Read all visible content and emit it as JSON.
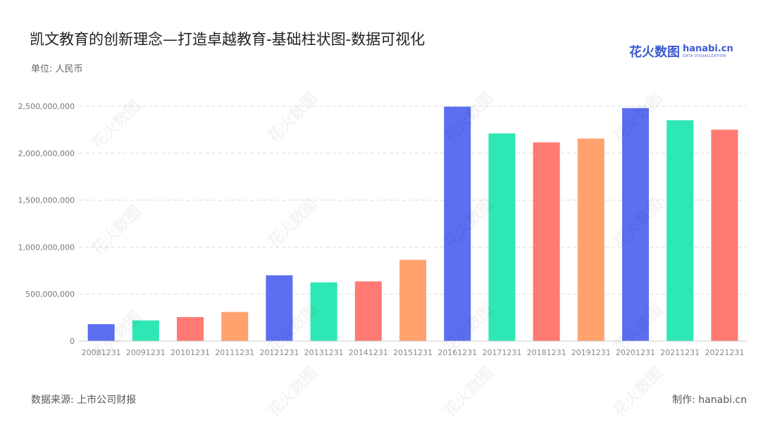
{
  "header": {
    "title": "凯文教育的创新理念—打造卓越教育-基础柱状图-数据可视化",
    "unit": "单位: 人民币"
  },
  "logo": {
    "cn": "花火数图",
    "en": "hanabi.cn",
    "sub": "DATA VISUALIZATION"
  },
  "footer": {
    "source": "数据来源: 上市公司财报",
    "credit": "制作: hanabi.cn"
  },
  "chart_data": {
    "type": "bar",
    "title": "凯文教育的创新理念—打造卓越教育-基础柱状图-数据可视化",
    "ylabel": "单位: 人民币",
    "categories": [
      "20081231",
      "20091231",
      "20101231",
      "20111231",
      "20121231",
      "20131231",
      "20141231",
      "20151231",
      "20161231",
      "20171231",
      "20181231",
      "20191231",
      "20201231",
      "20211231",
      "20221231"
    ],
    "values": [
      180000000,
      220000000,
      255000000,
      310000000,
      700000000,
      625000000,
      635000000,
      865000000,
      2495000000,
      2210000000,
      2115000000,
      2155000000,
      2480000000,
      2350000000,
      2250000000
    ],
    "yticks": [
      0,
      500000000,
      1000000000,
      1500000000,
      2000000000,
      2500000000
    ],
    "ytick_labels": [
      "0",
      "500,000,000",
      "1,000,000,000",
      "1,500,000,000",
      "2,000,000,000",
      "2,500,000,000"
    ],
    "ylim": [
      0,
      2500000000
    ],
    "grid": true,
    "legend": "none",
    "colors": [
      "#5b6ff0",
      "#2de8b4",
      "#ff7a72",
      "#ffa26e"
    ]
  }
}
